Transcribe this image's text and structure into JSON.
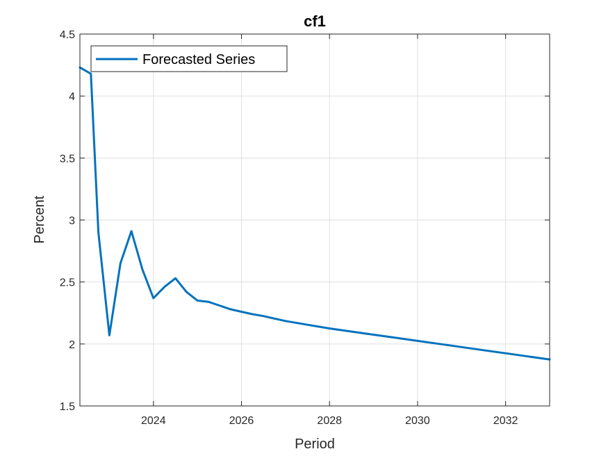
{
  "chart_data": {
    "type": "line",
    "title": "cf1",
    "xlabel": "Period",
    "ylabel": "Percent",
    "xlim": [
      2022.33,
      2033.0
    ],
    "ylim": [
      1.5,
      4.5
    ],
    "xticks": [
      2024,
      2026,
      2028,
      2030,
      2032
    ],
    "yticks": [
      1.5,
      2,
      2.5,
      3,
      3.5,
      4,
      4.5
    ],
    "ytick_labels": [
      "1.5",
      "2",
      "2.5",
      "3",
      "3.5",
      "4",
      "4.5"
    ],
    "grid": true,
    "legend_position": "top-left",
    "series": [
      {
        "name": "Forecasted Series",
        "color": "#0072BD",
        "x": [
          2022.33,
          2022.58,
          2022.75,
          2023.0,
          2023.25,
          2023.5,
          2023.75,
          2024.0,
          2024.25,
          2024.5,
          2024.75,
          2025.0,
          2025.25,
          2025.5,
          2025.75,
          2026.0,
          2026.25,
          2026.5,
          2026.75,
          2027.0,
          2027.5,
          2028.0,
          2028.5,
          2029.0,
          2029.5,
          2030.0,
          2030.5,
          2031.0,
          2031.5,
          2032.0,
          2032.5,
          2033.0
        ],
        "y": [
          4.23,
          4.18,
          2.9,
          2.07,
          2.65,
          2.91,
          2.6,
          2.37,
          2.46,
          2.53,
          2.42,
          2.35,
          2.34,
          2.31,
          2.28,
          2.26,
          2.24,
          2.225,
          2.205,
          2.185,
          2.155,
          2.125,
          2.1,
          2.075,
          2.05,
          2.025,
          2.0,
          1.975,
          1.95,
          1.925,
          1.9,
          1.875
        ]
      }
    ]
  }
}
